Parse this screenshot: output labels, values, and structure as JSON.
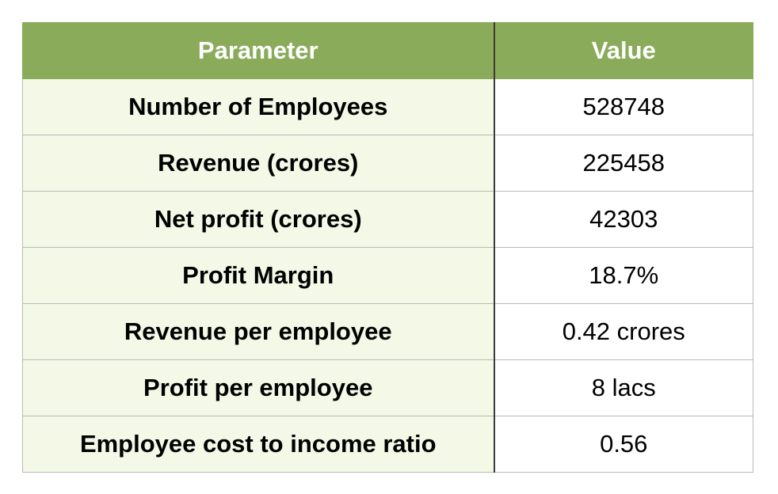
{
  "table": {
    "headers": {
      "parameter": "Parameter",
      "value": "Value"
    },
    "rows": [
      {
        "parameter": "Number of Employees",
        "value": "528748"
      },
      {
        "parameter": "Revenue (crores)",
        "value": "225458"
      },
      {
        "parameter": "Net profit (crores)",
        "value": "42303"
      },
      {
        "parameter": "Profit Margin",
        "value": "18.7%"
      },
      {
        "parameter": "Revenue per employee",
        "value": "0.42 crores"
      },
      {
        "parameter": "Profit per employee",
        "value": "8 lacs"
      },
      {
        "parameter": "Employee cost to income ratio",
        "value": "0.56"
      }
    ]
  },
  "colors": {
    "header_bg": "#8aab5a",
    "header_text": "#ffffff",
    "param_cell_bg": "#f3f9e6",
    "value_cell_bg": "#ffffff",
    "divider": "#3a3a3a",
    "grid": "#b9b9b9"
  }
}
